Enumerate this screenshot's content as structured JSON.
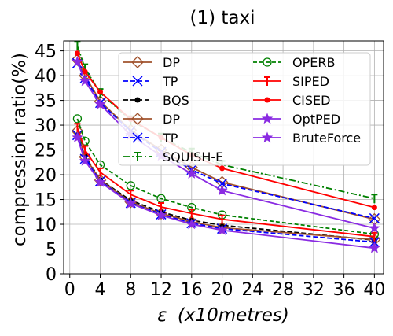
{
  "chart_data": {
    "type": "line",
    "title": "(1) taxi",
    "xlabel_prefix": "ε",
    "xlabel_suffix": "(x10metres)",
    "ylabel": "compression ratio(%)",
    "xlim": [
      -0.8,
      41.2
    ],
    "ylim": [
      0,
      47
    ],
    "xticks": [
      0,
      4,
      8,
      12,
      16,
      20,
      24,
      28,
      32,
      36,
      40
    ],
    "yticks": [
      0,
      5,
      10,
      15,
      20,
      25,
      30,
      35,
      40,
      45
    ],
    "grid": true,
    "legend": {
      "placement": "top-center",
      "columns": 2
    },
    "x": [
      1,
      2,
      4,
      8,
      12,
      16,
      20,
      40
    ],
    "series": [
      {
        "name": "DP",
        "group": "high",
        "color": "#a0522d",
        "dash": "",
        "marker": "diamond",
        "values": [
          43.2,
          40.0,
          34.8,
          29.0,
          25.0,
          21.5,
          18.5,
          11.0
        ]
      },
      {
        "name": "TP",
        "group": "high",
        "color": "#0000ff",
        "dash": "6,3",
        "marker": "x",
        "values": [
          42.5,
          39.5,
          34.5,
          28.8,
          24.6,
          21.0,
          18.2,
          11.2
        ]
      },
      {
        "name": "BQS",
        "group": "low",
        "color": "#000000",
        "dash": "6,3",
        "marker": "dot",
        "values": [
          28.0,
          23.8,
          19.0,
          14.8,
          12.5,
          10.8,
          9.8,
          6.8
        ]
      },
      {
        "name": "DP",
        "group": "low",
        "color": "#a0522d",
        "dash": "",
        "marker": "diamond",
        "values": [
          28.8,
          23.6,
          18.9,
          14.5,
          12.2,
          10.5,
          9.3,
          6.9
        ]
      },
      {
        "name": "TP",
        "group": "low",
        "color": "#0000ff",
        "dash": "6,3",
        "marker": "x",
        "values": [
          28.0,
          23.2,
          18.7,
          14.3,
          12.0,
          10.2,
          9.1,
          6.4
        ]
      },
      {
        "name": "SQUISH-E",
        "group": "high",
        "color": "#008000",
        "dash": "8,3,2,3",
        "marker": "plus",
        "values": [
          46.0,
          41.5,
          36.5,
          31.0,
          27.5,
          24.5,
          22.0,
          15.2
        ]
      },
      {
        "name": "OPERB",
        "group": "low",
        "color": "#008000",
        "dash": "5,3",
        "marker": "circle",
        "values": [
          31.3,
          26.8,
          22.0,
          17.8,
          15.2,
          13.4,
          11.9,
          8.0
        ]
      },
      {
        "name": "SIPED",
        "group": "low",
        "color": "#ff0000",
        "dash": "",
        "marker": "plus",
        "values": [
          29.5,
          25.0,
          20.5,
          16.0,
          13.5,
          12.2,
          11.0,
          7.5
        ]
      },
      {
        "name": "CISED",
        "group": "high",
        "color": "#ff0000",
        "dash": "",
        "marker": "dot",
        "values": [
          44.5,
          40.8,
          36.7,
          31.2,
          27.5,
          24.0,
          21.3,
          13.4
        ]
      },
      {
        "name": "OptPED",
        "group": "low",
        "color": "#8a2be2",
        "dash": "",
        "marker": "star",
        "values": [
          27.5,
          22.8,
          18.5,
          14.2,
          11.8,
          10.0,
          8.8,
          5.2
        ]
      },
      {
        "name": "BruteForce",
        "group": "high",
        "color": "#8a2be2",
        "dash": "",
        "marker": "star",
        "values": [
          42.8,
          38.9,
          34.2,
          28.0,
          23.8,
          20.2,
          16.8,
          9.2
        ]
      }
    ]
  }
}
